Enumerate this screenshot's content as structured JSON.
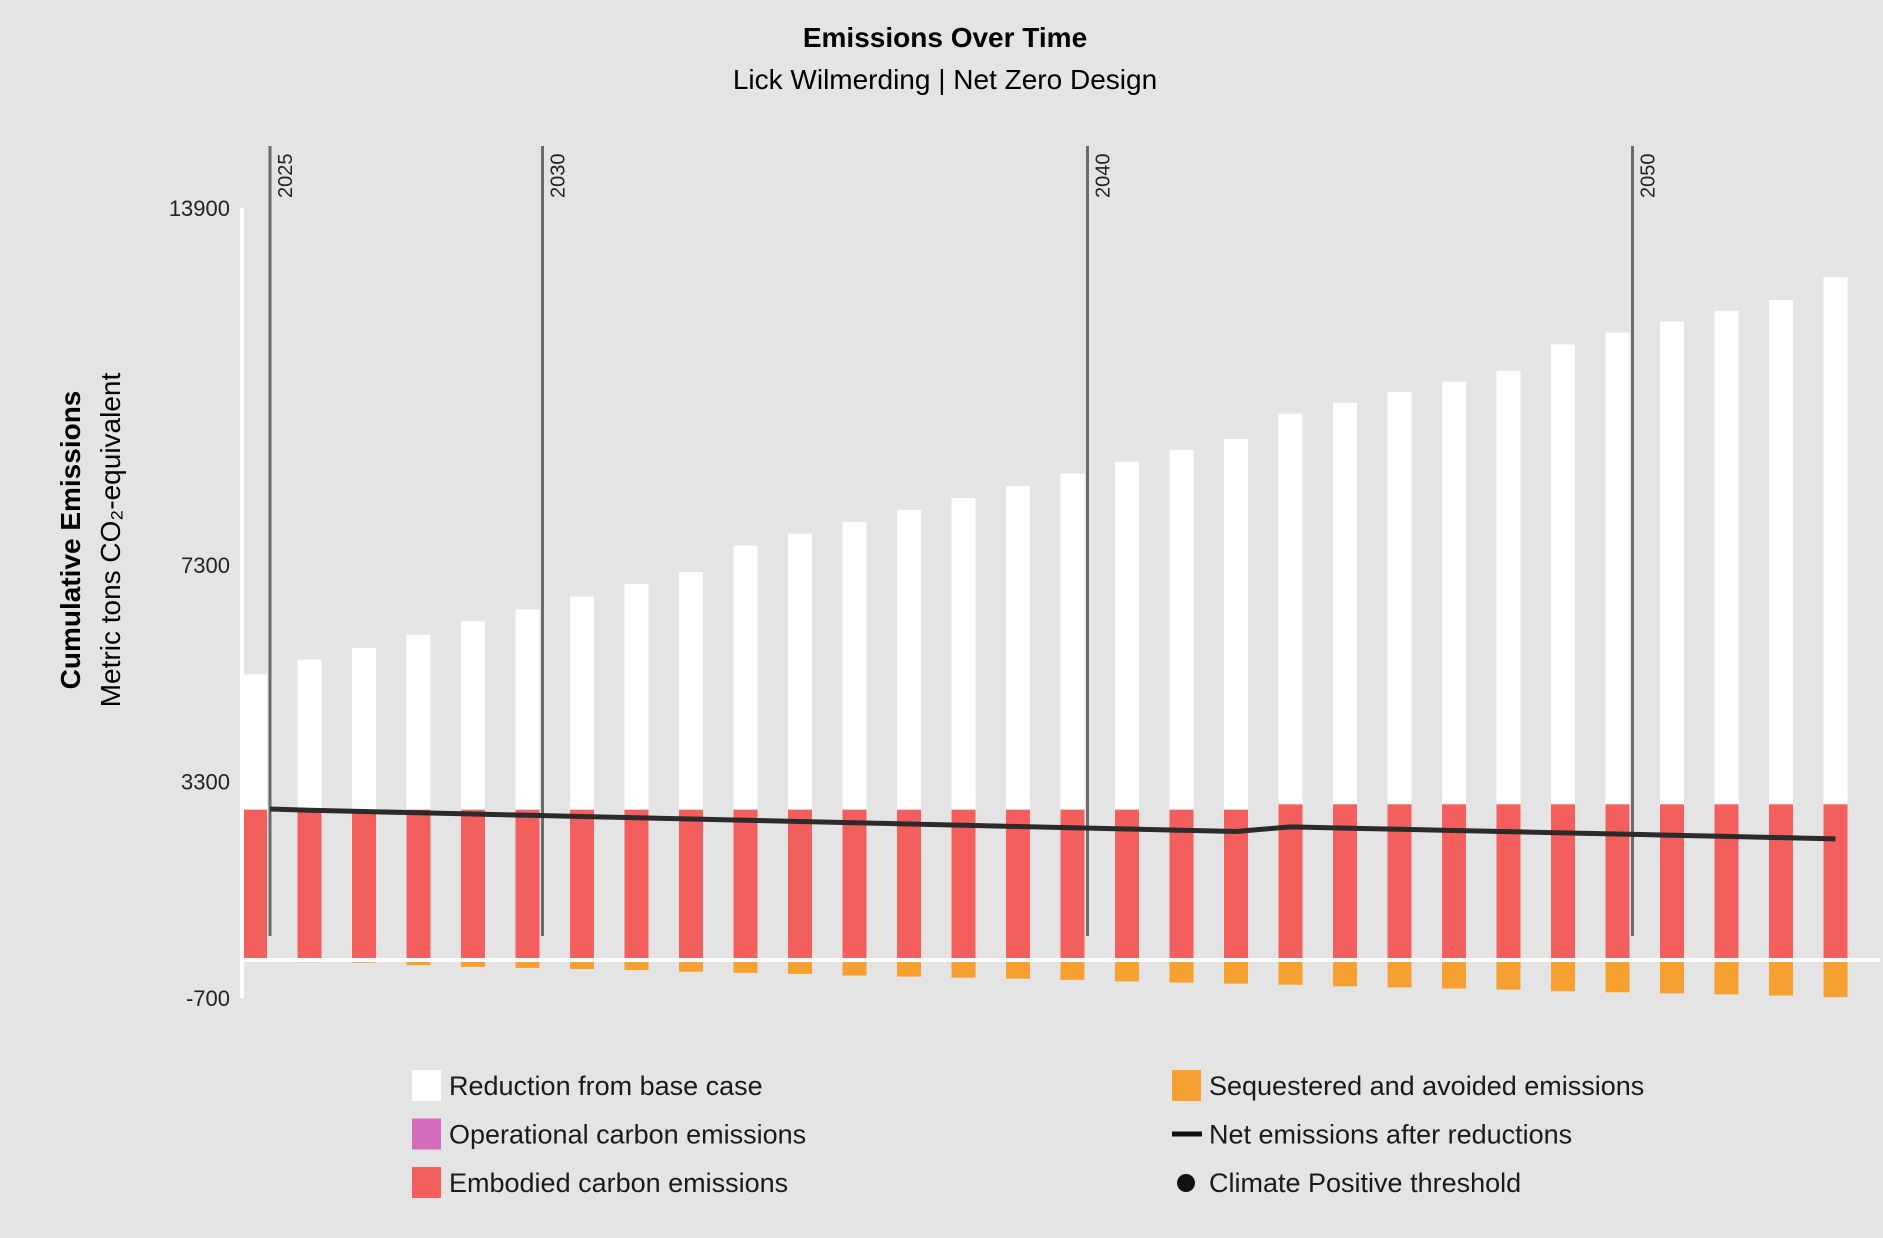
{
  "chart_data": {
    "type": "bar",
    "stacked": true,
    "title": "Emissions Over Time",
    "subtitle": "Lick Wilmerding | Net Zero Design",
    "ylabel": "Cumulative Emissions",
    "ylabel_sub": "Metric tons CO₂-equivalent",
    "ylim": [
      -700,
      13900
    ],
    "yticks": [
      "13900",
      "7300",
      "3300",
      "-700"
    ],
    "ytick_values": [
      13900,
      7300,
      3300,
      -700
    ],
    "year_markers": [
      "2025",
      "2030",
      "2040",
      "2050"
    ],
    "grid": false,
    "legend_position": "bottom",
    "series": [
      {
        "name": "Embodied carbon emissions",
        "color": "#f25f5c",
        "values": [
          2780,
          2780,
          2780,
          2780,
          2780,
          2780,
          2780,
          2780,
          2780,
          2780,
          2780,
          2780,
          2780,
          2780,
          2780,
          2780,
          2780,
          2780,
          2780,
          2880,
          2880,
          2880,
          2880,
          2880,
          2880,
          2880,
          2880,
          2880,
          2880,
          2880
        ]
      },
      {
        "name": "Reduction from base case",
        "color": "#ffffff",
        "values": [
          2500,
          2770,
          2990,
          3230,
          3480,
          3700,
          3940,
          4170,
          4390,
          4880,
          5100,
          5320,
          5540,
          5760,
          5980,
          6210,
          6430,
          6650,
          6850,
          7220,
          7420,
          7620,
          7810,
          8010,
          8500,
          8720,
          8920,
          9120,
          9320,
          9740
        ]
      },
      {
        "name": "Sequestered and avoided emissions",
        "color": "#f5a030",
        "values": [
          0,
          -5,
          -15,
          -60,
          -90,
          -110,
          -130,
          -150,
          -180,
          -200,
          -220,
          -250,
          -270,
          -290,
          -310,
          -330,
          -360,
          -380,
          -400,
          -420,
          -450,
          -470,
          -490,
          -510,
          -540,
          -560,
          -580,
          -600,
          -620,
          -650
        ]
      },
      {
        "name": "Net emissions after reductions",
        "type": "line",
        "color": "#2b2b2b",
        "values": [
          2790,
          2767,
          2744,
          2721,
          2698,
          2675,
          2652,
          2629,
          2606,
          2583,
          2560,
          2537,
          2514,
          2491,
          2468,
          2445,
          2422,
          2399,
          2376,
          2460,
          2438,
          2416,
          2394,
          2372,
          2350,
          2328,
          2306,
          2284,
          2262,
          2240
        ]
      }
    ]
  },
  "legend": [
    {
      "label": "Reduction from base case",
      "color": "#ffffff",
      "marker": "square"
    },
    {
      "label": "Operational carbon emissions",
      "color": "#d46bbd",
      "marker": "square"
    },
    {
      "label": "Embodied carbon emissions",
      "color": "#f25f5c",
      "marker": "square"
    },
    {
      "label": "Sequestered and avoided emissions",
      "color": "#f5a030",
      "marker": "square"
    },
    {
      "label": "Net emissions after reductions",
      "color": "#111111",
      "marker": "line"
    },
    {
      "label": "Climate Positive threshold",
      "color": "#111111",
      "marker": "dot"
    }
  ]
}
